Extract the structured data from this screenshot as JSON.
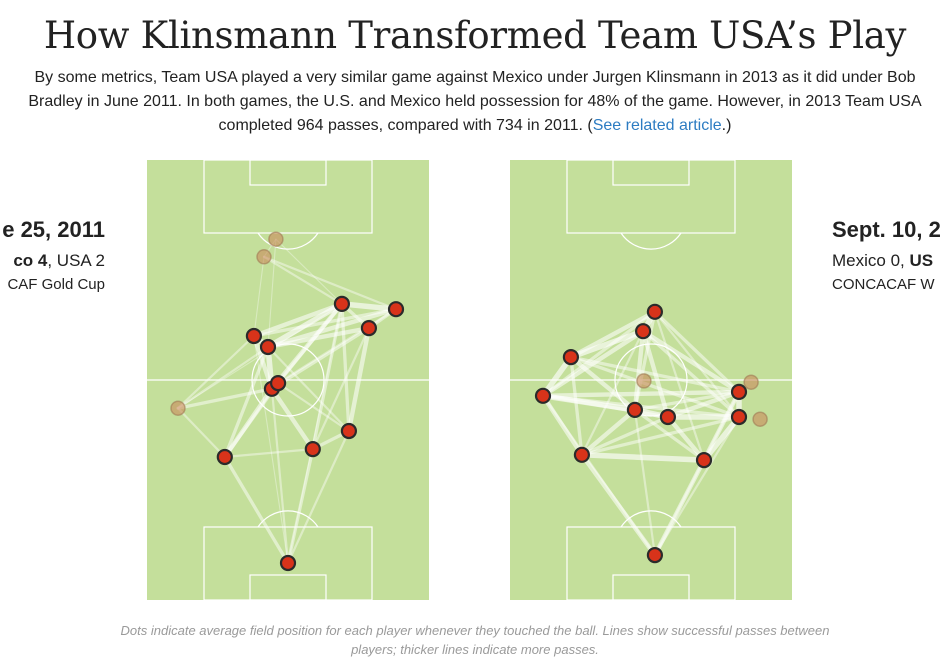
{
  "title": "How Klinsmann Transformed Team USA’s Play",
  "intro": {
    "text": "By some metrics, Team USA played a very similar game against Mexico under Jurgen Klinsmann in 2013 as it did under Bob Bradley in June 2011. In both games, the U.S. and Mexico held possession for 48% of the game. However, in 2013 Team USA completed 964 passes, compared with 734 in 2011. (",
    "link_text": "See related article",
    "after_link": ".)"
  },
  "matches": {
    "left": {
      "date_visible": "e 25, 2011",
      "score_home_bold": "co 4",
      "score_rest": ", USA 2",
      "competition_visible": "CAF Gold Cup"
    },
    "right": {
      "date_visible": "Sept. 10, 2",
      "score_lead": "Mexico 0, ",
      "score_usa_bold": "US",
      "competition_visible": "CONCACAF W"
    }
  },
  "caption": "Dots indicate average field position for each player whenever they touched the ball. Lines show successful passes between players; thicker lines indicate more passes.",
  "colors": {
    "field": "#c4df9b",
    "field_lines": "#ffffff",
    "player_fill": "#d8331a",
    "player_stroke": "#2b2b2b",
    "faded_player_fill": "#c98a5a",
    "pass_line": "#ffffff",
    "link": "#2d7cc2"
  },
  "chart_data": [
    {
      "type": "network",
      "match": "2011",
      "field_length_units": 100,
      "field_width_units": 100,
      "players": [
        {
          "id": "p1",
          "x": 50.0,
          "y": 91.6,
          "faded": false
        },
        {
          "id": "p2",
          "x": 27.6,
          "y": 67.5,
          "faded": false
        },
        {
          "id": "p3",
          "x": 58.8,
          "y": 65.7,
          "faded": false
        },
        {
          "id": "p4",
          "x": 71.6,
          "y": 61.6,
          "faded": false
        },
        {
          "id": "p5",
          "x": 11.0,
          "y": 56.4,
          "faded": true
        },
        {
          "id": "p6",
          "x": 44.3,
          "y": 52.0,
          "faded": false
        },
        {
          "id": "p7",
          "x": 46.5,
          "y": 50.7,
          "faded": false
        },
        {
          "id": "p8",
          "x": 42.9,
          "y": 42.5,
          "faded": false
        },
        {
          "id": "p9",
          "x": 37.9,
          "y": 40.0,
          "faded": false
        },
        {
          "id": "p10",
          "x": 78.7,
          "y": 38.2,
          "faded": false
        },
        {
          "id": "p11",
          "x": 69.1,
          "y": 32.7,
          "faded": false
        },
        {
          "id": "p12",
          "x": 88.3,
          "y": 33.9,
          "faded": false
        },
        {
          "id": "p13",
          "x": 41.5,
          "y": 22.0,
          "faded": true
        },
        {
          "id": "p14",
          "x": 45.7,
          "y": 18.0,
          "faded": true
        }
      ],
      "passes": [
        {
          "from": "p1",
          "to": "p2",
          "count": 3
        },
        {
          "from": "p1",
          "to": "p3",
          "count": 3
        },
        {
          "from": "p1",
          "to": "p4",
          "count": 2
        },
        {
          "from": "p1",
          "to": "p6",
          "count": 2
        },
        {
          "from": "p1",
          "to": "p9",
          "count": 1
        },
        {
          "from": "p1",
          "to": "p11",
          "count": 1
        },
        {
          "from": "p2",
          "to": "p6",
          "count": 4
        },
        {
          "from": "p2",
          "to": "p7",
          "count": 3
        },
        {
          "from": "p2",
          "to": "p3",
          "count": 2
        },
        {
          "from": "p2",
          "to": "p5",
          "count": 2
        },
        {
          "from": "p2",
          "to": "p8",
          "count": 3
        },
        {
          "from": "p3",
          "to": "p4",
          "count": 3
        },
        {
          "from": "p3",
          "to": "p6",
          "count": 4
        },
        {
          "from": "p3",
          "to": "p11",
          "count": 3
        },
        {
          "from": "p3",
          "to": "p10",
          "count": 2
        },
        {
          "from": "p4",
          "to": "p10",
          "count": 4
        },
        {
          "from": "p4",
          "to": "p11",
          "count": 3
        },
        {
          "from": "p4",
          "to": "p7",
          "count": 2
        },
        {
          "from": "p4",
          "to": "p8",
          "count": 2
        },
        {
          "from": "p5",
          "to": "p6",
          "count": 3
        },
        {
          "from": "p5",
          "to": "p9",
          "count": 2
        },
        {
          "from": "p5",
          "to": "p8",
          "count": 2
        },
        {
          "from": "p5",
          "to": "p11",
          "count": 1
        },
        {
          "from": "p6",
          "to": "p7",
          "count": 5
        },
        {
          "from": "p6",
          "to": "p8",
          "count": 5
        },
        {
          "from": "p6",
          "to": "p9",
          "count": 4
        },
        {
          "from": "p6",
          "to": "p11",
          "count": 4
        },
        {
          "from": "p6",
          "to": "p10",
          "count": 3
        },
        {
          "from": "p7",
          "to": "p11",
          "count": 3
        },
        {
          "from": "p7",
          "to": "p12",
          "count": 2
        },
        {
          "from": "p8",
          "to": "p9",
          "count": 5
        },
        {
          "from": "p8",
          "to": "p11",
          "count": 5
        },
        {
          "from": "p8",
          "to": "p10",
          "count": 4
        },
        {
          "from": "p8",
          "to": "p12",
          "count": 4
        },
        {
          "from": "p9",
          "to": "p11",
          "count": 4
        },
        {
          "from": "p9",
          "to": "p12",
          "count": 3
        },
        {
          "from": "p9",
          "to": "p13",
          "count": 1
        },
        {
          "from": "p10",
          "to": "p11",
          "count": 3
        },
        {
          "from": "p10",
          "to": "p12",
          "count": 3
        },
        {
          "from": "p11",
          "to": "p12",
          "count": 5
        },
        {
          "from": "p11",
          "to": "p13",
          "count": 2
        },
        {
          "from": "p11",
          "to": "p14",
          "count": 1
        },
        {
          "from": "p12",
          "to": "p13",
          "count": 2
        },
        {
          "from": "p13",
          "to": "p14",
          "count": 1
        },
        {
          "from": "p8",
          "to": "p14",
          "count": 1
        }
      ]
    },
    {
      "type": "network",
      "match": "2013",
      "field_length_units": 100,
      "field_width_units": 100,
      "players": [
        {
          "id": "q1",
          "x": 51.4,
          "y": 89.8,
          "faded": false
        },
        {
          "id": "q2",
          "x": 25.5,
          "y": 67.0,
          "faded": false
        },
        {
          "id": "q3",
          "x": 68.8,
          "y": 68.2,
          "faded": false
        },
        {
          "id": "q4",
          "x": 56.0,
          "y": 58.4,
          "faded": false
        },
        {
          "id": "q5",
          "x": 44.3,
          "y": 56.8,
          "faded": false
        },
        {
          "id": "q6",
          "x": 81.2,
          "y": 58.4,
          "faded": false
        },
        {
          "id": "q7",
          "x": 88.7,
          "y": 58.9,
          "faded": true
        },
        {
          "id": "q8",
          "x": 11.7,
          "y": 53.6,
          "faded": false
        },
        {
          "id": "q9",
          "x": 47.5,
          "y": 50.2,
          "faded": true
        },
        {
          "id": "q10",
          "x": 81.2,
          "y": 52.7,
          "faded": false
        },
        {
          "id": "q11",
          "x": 85.5,
          "y": 50.5,
          "faded": true
        },
        {
          "id": "q12",
          "x": 21.6,
          "y": 44.8,
          "faded": false
        },
        {
          "id": "q13",
          "x": 47.2,
          "y": 38.9,
          "faded": false
        },
        {
          "id": "q14",
          "x": 51.4,
          "y": 34.5,
          "faded": false
        }
      ],
      "passes": [
        {
          "from": "q1",
          "to": "q2",
          "count": 4
        },
        {
          "from": "q1",
          "to": "q3",
          "count": 4
        },
        {
          "from": "q1",
          "to": "q5",
          "count": 2
        },
        {
          "from": "q1",
          "to": "q8",
          "count": 2
        },
        {
          "from": "q1",
          "to": "q6",
          "count": 2
        },
        {
          "from": "q1",
          "to": "q10",
          "count": 2
        },
        {
          "from": "q2",
          "to": "q3",
          "count": 5
        },
        {
          "from": "q2",
          "to": "q8",
          "count": 4
        },
        {
          "from": "q2",
          "to": "q5",
          "count": 4
        },
        {
          "from": "q2",
          "to": "q4",
          "count": 3
        },
        {
          "from": "q2",
          "to": "q12",
          "count": 3
        },
        {
          "from": "q2",
          "to": "q6",
          "count": 3
        },
        {
          "from": "q2",
          "to": "q13",
          "count": 2
        },
        {
          "from": "q3",
          "to": "q6",
          "count": 5
        },
        {
          "from": "q3",
          "to": "q10",
          "count": 4
        },
        {
          "from": "q3",
          "to": "q4",
          "count": 4
        },
        {
          "from": "q3",
          "to": "q5",
          "count": 3
        },
        {
          "from": "q3",
          "to": "q14",
          "count": 2
        },
        {
          "from": "q4",
          "to": "q5",
          "count": 5
        },
        {
          "from": "q4",
          "to": "q6",
          "count": 5
        },
        {
          "from": "q4",
          "to": "q10",
          "count": 4
        },
        {
          "from": "q4",
          "to": "q13",
          "count": 4
        },
        {
          "from": "q4",
          "to": "q8",
          "count": 3
        },
        {
          "from": "q5",
          "to": "q8",
          "count": 5
        },
        {
          "from": "q5",
          "to": "q12",
          "count": 4
        },
        {
          "from": "q5",
          "to": "q13",
          "count": 4
        },
        {
          "from": "q5",
          "to": "q14",
          "count": 3
        },
        {
          "from": "q5",
          "to": "q10",
          "count": 3
        },
        {
          "from": "q6",
          "to": "q10",
          "count": 5
        },
        {
          "from": "q6",
          "to": "q13",
          "count": 3
        },
        {
          "from": "q6",
          "to": "q8",
          "count": 3
        },
        {
          "from": "q8",
          "to": "q12",
          "count": 5
        },
        {
          "from": "q8",
          "to": "q13",
          "count": 4
        },
        {
          "from": "q8",
          "to": "q10",
          "count": 4
        },
        {
          "from": "q8",
          "to": "q14",
          "count": 3
        },
        {
          "from": "q10",
          "to": "q13",
          "count": 4
        },
        {
          "from": "q10",
          "to": "q14",
          "count": 3
        },
        {
          "from": "q10",
          "to": "q12",
          "count": 3
        },
        {
          "from": "q12",
          "to": "q13",
          "count": 5
        },
        {
          "from": "q12",
          "to": "q14",
          "count": 4
        },
        {
          "from": "q13",
          "to": "q14",
          "count": 5
        },
        {
          "from": "q6",
          "to": "q14",
          "count": 2
        },
        {
          "from": "q12",
          "to": "q6",
          "count": 3
        }
      ]
    }
  ]
}
